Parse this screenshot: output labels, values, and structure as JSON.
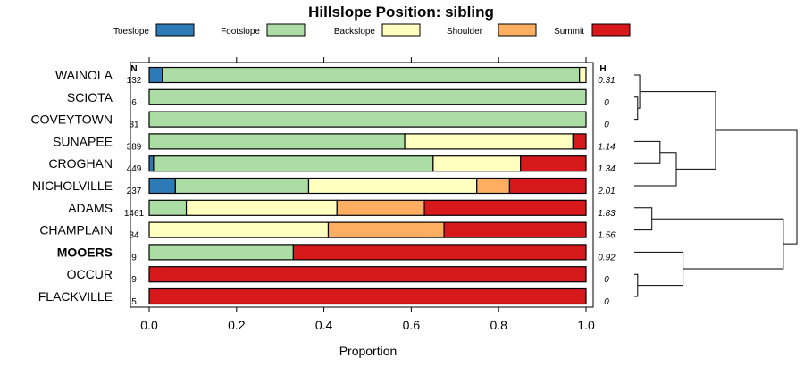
{
  "chart_data": {
    "type": "bar",
    "stacked": "horizontal-proportion",
    "title": "Hillslope Position: sibling",
    "xlabel": "Proportion",
    "xlim": [
      0,
      1
    ],
    "x_ticks": [
      "0.0",
      "0.2",
      "0.4",
      "0.6",
      "0.8",
      "1.0"
    ],
    "n_header": "N",
    "h_header": "H",
    "legend_position": "top",
    "series": [
      {
        "name": "Toeslope",
        "color": "#2c7bb6"
      },
      {
        "name": "Footslope",
        "color": "#abdda4"
      },
      {
        "name": "Backslope",
        "color": "#ffffbf"
      },
      {
        "name": "Shoulder",
        "color": "#fdae61"
      },
      {
        "name": "Summit",
        "color": "#d7191c"
      }
    ],
    "categories": [
      {
        "label": "WAINOLA",
        "n": "132",
        "h": "0.31",
        "bold": false,
        "values": [
          0.03,
          0.955,
          0.015,
          0,
          0
        ]
      },
      {
        "label": "SCIOTA",
        "n": "6",
        "h": "0",
        "bold": false,
        "values": [
          0,
          1,
          0,
          0,
          0
        ]
      },
      {
        "label": "COVEYTOWN",
        "n": "31",
        "h": "0",
        "bold": false,
        "values": [
          0,
          1,
          0,
          0,
          0
        ]
      },
      {
        "label": "SUNAPEE",
        "n": "389",
        "h": "1.14",
        "bold": false,
        "values": [
          0,
          0.585,
          0.385,
          0,
          0.03
        ]
      },
      {
        "label": "CROGHAN",
        "n": "449",
        "h": "1.34",
        "bold": false,
        "values": [
          0.01,
          0.64,
          0.2,
          0,
          0.15
        ]
      },
      {
        "label": "NICHOLVILLE",
        "n": "237",
        "h": "2.01",
        "bold": false,
        "values": [
          0.06,
          0.305,
          0.385,
          0.075,
          0.175
        ]
      },
      {
        "label": "ADAMS",
        "n": "1461",
        "h": "1.83",
        "bold": false,
        "values": [
          0,
          0.085,
          0.345,
          0.2,
          0.37
        ]
      },
      {
        "label": "CHAMPLAIN",
        "n": "34",
        "h": "1.56",
        "bold": false,
        "values": [
          0,
          0,
          0.41,
          0.265,
          0.325
        ]
      },
      {
        "label": "MOOERS",
        "n": "9",
        "h": "0.92",
        "bold": true,
        "values": [
          0,
          0.33,
          0,
          0,
          0.67
        ]
      },
      {
        "label": "OCCUR",
        "n": "9",
        "h": "0",
        "bold": false,
        "values": [
          0,
          0,
          0,
          0,
          1
        ]
      },
      {
        "label": "FLACKVILLE",
        "n": "5",
        "h": "0",
        "bold": false,
        "values": [
          0,
          0,
          0,
          0,
          1
        ]
      }
    ],
    "dendrogram": {
      "orientation": "right",
      "leaves": [
        "WAINOLA",
        "SCIOTA",
        "COVEYTOWN",
        "SUNAPEE",
        "CROGHAN",
        "NICHOLVILLE",
        "ADAMS",
        "CHAMPLAIN",
        "MOOERS",
        "OCCUR",
        "FLACKVILLE"
      ],
      "merges": [
        {
          "a": "SCIOTA",
          "b": "COVEYTOWN",
          "height": 0.05
        },
        {
          "a": "OCCUR",
          "b": "FLACKVILLE",
          "height": 0.05
        },
        {
          "a": "WAINOLA",
          "b": "SCIOTA+COVEYTOWN",
          "height": 0.08
        },
        {
          "a": "SUNAPEE",
          "b": "CROGHAN",
          "height": 0.38
        },
        {
          "a": "ADAMS",
          "b": "CHAMPLAIN",
          "height": 0.26
        },
        {
          "a": "SUNAPEE+CROGHAN",
          "b": "NICHOLVILLE",
          "height": 0.62
        },
        {
          "a": "MOOERS",
          "b": "OCCUR+FLACKVILLE",
          "height": 0.72
        },
        {
          "a": "ADAMS+CHAMPLAIN",
          "b": "MOOERS+OCCUR+FLACKVILLE",
          "height": 2.2
        },
        {
          "a": "WAINOLA+SCIOTA+COVEYTOWN",
          "b": "SUNAPEE+CROGHAN+NICHOLVILLE",
          "height": 1.2
        },
        {
          "a": "TOP",
          "b": "BOTTOM",
          "height": 2.4
        }
      ]
    }
  }
}
